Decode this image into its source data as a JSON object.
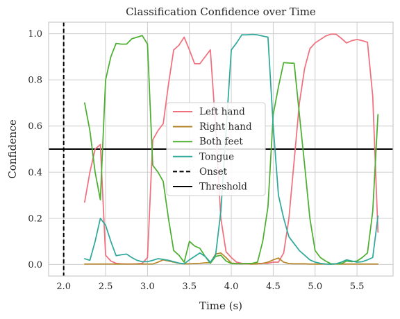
{
  "chart_data": {
    "type": "line",
    "title": "Classification Confidence over Time",
    "xlabel": "Time (s)",
    "ylabel": "Confidence",
    "xlim": [
      1.82,
      5.93
    ],
    "ylim": [
      -0.05,
      1.05
    ],
    "xticks": [
      2.0,
      2.5,
      3.0,
      3.5,
      4.0,
      4.5,
      5.0,
      5.5
    ],
    "xtick_labels": [
      "2.0",
      "2.5",
      "3.0",
      "3.5",
      "4.0",
      "4.5",
      "5.0",
      "5.5"
    ],
    "yticks": [
      0.0,
      0.2,
      0.4,
      0.6,
      0.8,
      1.0
    ],
    "ytick_labels": [
      "0.0",
      "0.2",
      "0.4",
      "0.6",
      "0.8",
      "1.0"
    ],
    "grid": true,
    "legend_position": "center",
    "x": [
      2.25,
      2.3125,
      2.375,
      2.4375,
      2.5,
      2.5625,
      2.625,
      2.6875,
      2.75,
      2.8125,
      2.875,
      2.9375,
      3.0,
      3.0625,
      3.125,
      3.1875,
      3.25,
      3.3125,
      3.375,
      3.4375,
      3.5,
      3.5625,
      3.625,
      3.6875,
      3.75,
      3.8125,
      3.875,
      3.9375,
      4.0,
      4.0625,
      4.125,
      4.1875,
      4.25,
      4.3125,
      4.375,
      4.4375,
      4.5,
      4.5625,
      4.625,
      4.6875,
      4.75,
      4.8125,
      4.875,
      4.9375,
      5.0,
      5.0625,
      5.125,
      5.1875,
      5.25,
      5.3125,
      5.375,
      5.4375,
      5.5,
      5.5625,
      5.625,
      5.6875,
      5.75
    ],
    "series": [
      {
        "name": "Left hand",
        "color": "#f0707e",
        "values": [
          0.27,
          0.4,
          0.5,
          0.52,
          0.04,
          0.015,
          0.005,
          0.003,
          0.002,
          0.002,
          0.003,
          0.005,
          0.03,
          0.54,
          0.58,
          0.61,
          0.78,
          0.93,
          0.95,
          0.985,
          0.93,
          0.87,
          0.87,
          0.9,
          0.93,
          0.6,
          0.2,
          0.055,
          0.03,
          0.01,
          0.005,
          0.004,
          0.003,
          0.004,
          0.005,
          0.005,
          0.01,
          0.01,
          0.05,
          0.2,
          0.45,
          0.7,
          0.85,
          0.935,
          0.96,
          0.975,
          0.99,
          0.998,
          0.998,
          0.98,
          0.96,
          0.97,
          0.975,
          0.97,
          0.963,
          0.73,
          0.14
        ]
      },
      {
        "name": "Right hand",
        "color": "#b8872c",
        "values": [
          0.002,
          0.002,
          0.002,
          0.002,
          0.002,
          0.002,
          0.002,
          0.002,
          0.002,
          0.002,
          0.002,
          0.002,
          0.002,
          0.002,
          0.01,
          0.02,
          0.015,
          0.01,
          0.005,
          0.003,
          0.003,
          0.004,
          0.005,
          0.007,
          0.008,
          0.045,
          0.05,
          0.03,
          0.006,
          0.004,
          0.003,
          0.003,
          0.002,
          0.003,
          0.005,
          0.01,
          0.02,
          0.028,
          0.01,
          0.004,
          0.003,
          0.003,
          0.003,
          0.002,
          0.002,
          0.002,
          0.002,
          0.002,
          0.002,
          0.002,
          0.002,
          0.002,
          0.002,
          0.002,
          0.002,
          0.002,
          0.002
        ]
      },
      {
        "name": "Both feet",
        "color": "#4caf2f",
        "values": [
          0.7,
          0.58,
          0.4,
          0.28,
          0.8,
          0.9,
          0.958,
          0.955,
          0.955,
          0.978,
          0.985,
          0.992,
          0.955,
          0.43,
          0.4,
          0.36,
          0.2,
          0.06,
          0.04,
          0.01,
          0.1,
          0.08,
          0.07,
          0.035,
          0.005,
          0.035,
          0.04,
          0.015,
          0.004,
          0.003,
          0.003,
          0.004,
          0.005,
          0.01,
          0.1,
          0.25,
          0.65,
          0.77,
          0.875,
          0.873,
          0.872,
          0.65,
          0.43,
          0.2,
          0.06,
          0.03,
          0.015,
          0.003,
          0.003,
          0.003,
          0.015,
          0.012,
          0.015,
          0.03,
          0.05,
          0.23,
          0.65
        ]
      },
      {
        "name": "Tongue",
        "color": "#31a99a",
        "values": [
          0.025,
          0.018,
          0.1,
          0.2,
          0.17,
          0.1,
          0.038,
          0.042,
          0.045,
          0.03,
          0.018,
          0.012,
          0.012,
          0.018,
          0.025,
          0.022,
          0.018,
          0.012,
          0.006,
          0.003,
          0.02,
          0.035,
          0.05,
          0.035,
          0.01,
          0.04,
          0.23,
          0.58,
          0.93,
          0.96,
          0.995,
          0.995,
          0.997,
          0.995,
          0.99,
          0.985,
          0.6,
          0.3,
          0.2,
          0.12,
          0.09,
          0.06,
          0.04,
          0.02,
          0.01,
          0.005,
          0.002,
          0.001,
          0.003,
          0.01,
          0.02,
          0.015,
          0.01,
          0.012,
          0.02,
          0.03,
          0.21
        ]
      }
    ],
    "reference_lines": [
      {
        "name": "Onset",
        "orientation": "vertical",
        "value": 2.0,
        "style": "dashed",
        "color": "#000000"
      },
      {
        "name": "Threshold",
        "orientation": "horizontal",
        "value": 0.5,
        "style": "solid",
        "color": "#000000"
      }
    ]
  }
}
